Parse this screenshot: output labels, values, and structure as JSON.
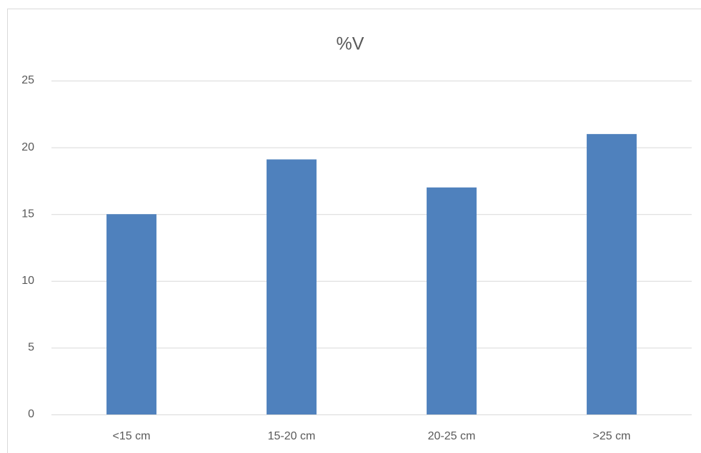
{
  "chart_data": {
    "type": "bar",
    "title": "%V",
    "categories": [
      "<15 cm",
      "15-20 cm",
      "20-25 cm",
      ">25 cm"
    ],
    "values": [
      15,
      19.1,
      17,
      21
    ],
    "color": "#4f81bd",
    "ylim": [
      0,
      25
    ],
    "yticks": [
      0,
      5,
      10,
      15,
      20,
      25
    ],
    "grid": true
  }
}
